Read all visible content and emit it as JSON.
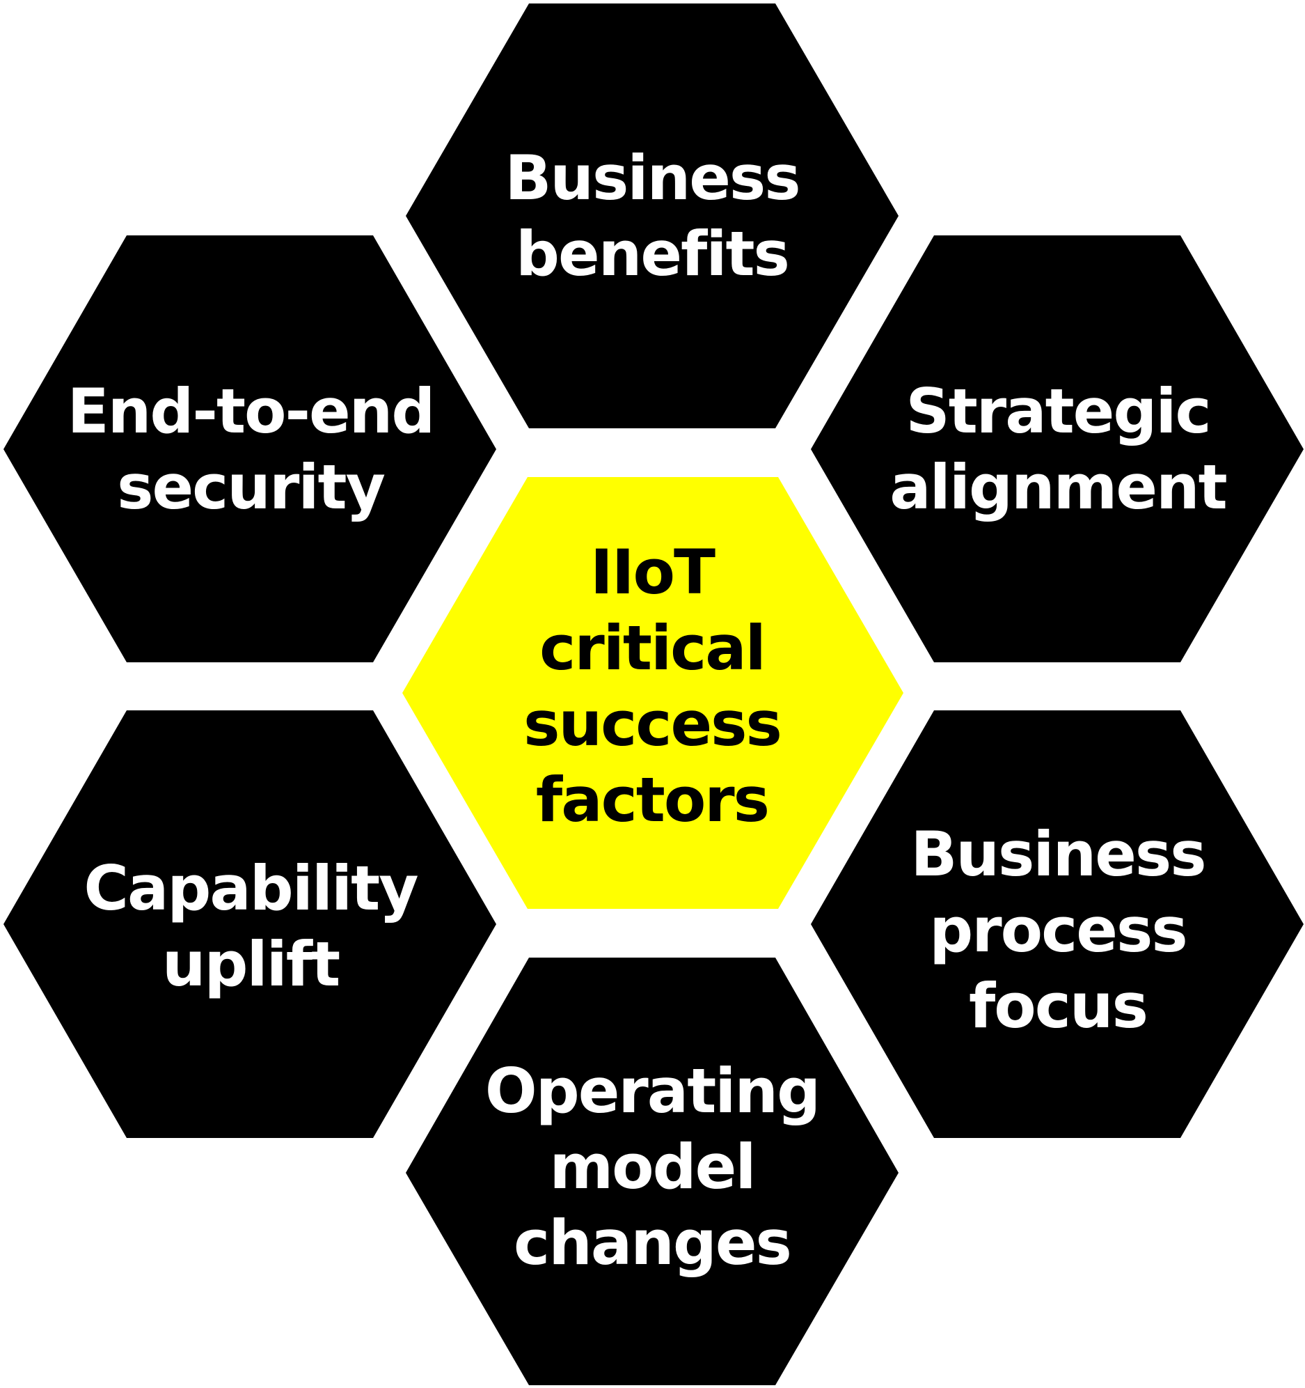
{
  "colors": {
    "outer_fill": "#000000",
    "center_fill": "#ffff00",
    "outer_text": "#ffffff",
    "center_text": "#000000",
    "background": "#ffffff"
  },
  "center": {
    "label": "IIoT\ncritical\nsuccess\nfactors"
  },
  "factors": [
    {
      "id": "top",
      "label": "Business\nbenefits"
    },
    {
      "id": "upper-left",
      "label": "End-to-end\nsecurity"
    },
    {
      "id": "upper-right",
      "label": "Strategic\nalignment"
    },
    {
      "id": "lower-left",
      "label": "Capability\nuplift"
    },
    {
      "id": "lower-right",
      "label": "Business\nprocess\nfocus"
    },
    {
      "id": "bottom",
      "label": "Operating\nmodel\nchanges"
    }
  ]
}
